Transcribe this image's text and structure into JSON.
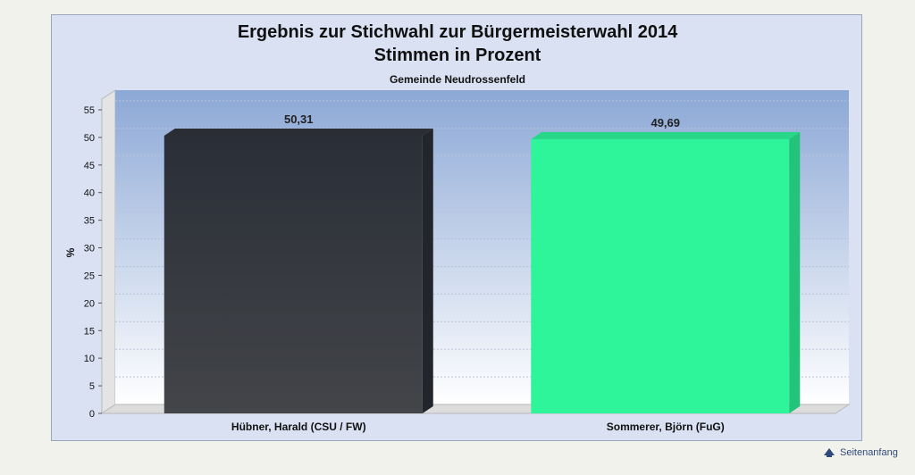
{
  "chart_data": {
    "type": "bar",
    "title": "Ergebnis zur Stichwahl zur Bürgermeisterwahl 2014",
    "subtitle": "Stimmen in Prozent",
    "subtitle2": "Gemeinde Neudrossenfeld",
    "ylabel": "%",
    "xlabel": "",
    "ylim": [
      0,
      55
    ],
    "yticks": [
      0,
      5,
      10,
      15,
      20,
      25,
      30,
      35,
      40,
      45,
      50,
      55
    ],
    "categories": [
      "Hübner, Harald (CSU / FW)",
      "Sommerer, Björn (FuG)"
    ],
    "values": [
      50.31,
      49.69
    ],
    "value_labels": [
      "50,31",
      "49,69"
    ],
    "colors": [
      "#3a3d44",
      "#2ef59a"
    ],
    "side_colors": [
      "#22252b",
      "#22c47a"
    ],
    "top_colors": [
      "#2a2d33",
      "#28d888"
    ],
    "grid": true,
    "legend": "none"
  },
  "footer": {
    "link_label": "Seitenanfang",
    "icon": "arrow-up-icon"
  },
  "colors": {
    "panel_bg": "#d9e1f2",
    "plot_top": "#8ca8d6",
    "plot_bottom": "#ffffff",
    "link": "#2f4a7a"
  }
}
